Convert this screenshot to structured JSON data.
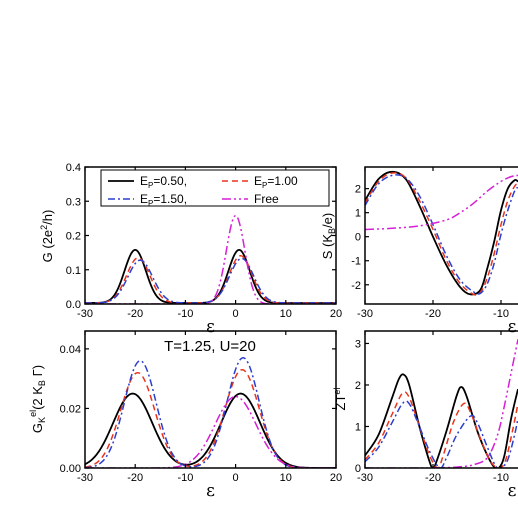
{
  "colors": {
    "Ep050": "#000000",
    "Ep100": "#e8341c",
    "Ep150": "#2b3ecf",
    "Free": "#d61fd6"
  },
  "chart_data": [
    {
      "type": "line",
      "panel": "G",
      "ylabel": "G (2e²/h)",
      "xlabel": "ε",
      "xlim": [
        -30,
        20
      ],
      "ylim": [
        0,
        0.4
      ],
      "xticks": [
        "-30",
        "-20",
        "-10",
        "0",
        "10",
        "20"
      ],
      "yticks": [
        "0.0",
        "0.1",
        "0.2",
        "0.3",
        "0.4"
      ],
      "legend": [
        "E_P=0.50,",
        "E_P=1.00",
        "E_P=1.50,",
        "Free"
      ],
      "series": [
        {
          "name": "E_P=0.50,",
          "peaks": [
            [
              -20,
              0.155,
              3.0
            ],
            [
              0.7,
              0.155,
              3.0
            ]
          ],
          "base": 0.003
        },
        {
          "name": "E_P=1.00",
          "peaks": [
            [
              -19.4,
              0.132,
              3.3
            ],
            [
              1.0,
              0.138,
              3.2
            ]
          ],
          "base": 0.003
        },
        {
          "name": "E_P=1.50,",
          "peaks": [
            [
              -19,
              0.125,
              3.5
            ],
            [
              1.2,
              0.13,
              3.4
            ]
          ],
          "base": 0.003
        },
        {
          "name": "Free",
          "peaks": [
            [
              0,
              0.258,
              2.6
            ]
          ],
          "base": 0.0
        }
      ]
    },
    {
      "type": "line",
      "panel": "S",
      "ylabel": "S (K_B/e)",
      "xlabel": "ε",
      "xlim": [
        -30,
        -7.5
      ],
      "ylim": [
        -2.8,
        2.9
      ],
      "xticks": [
        "-30",
        "-20",
        "-10"
      ],
      "yticks": [
        "-2",
        "-1",
        "0",
        "1",
        "2"
      ],
      "series": [
        {
          "name": "E_P=0.50,",
          "points": [
            [
              -30,
              1.5
            ],
            [
              -28,
              2.4
            ],
            [
              -26,
              2.7
            ],
            [
              -24,
              2.4
            ],
            [
              -22,
              1.3
            ],
            [
              -20,
              0.0
            ],
            [
              -18,
              -1.2
            ],
            [
              -16,
              -2.1
            ],
            [
              -14.5,
              -2.4
            ],
            [
              -13,
              -2.2
            ],
            [
              -12,
              -1.3
            ],
            [
              -11,
              -0.2
            ],
            [
              -10,
              1.1
            ],
            [
              -9,
              2.0
            ],
            [
              -8,
              2.35
            ],
            [
              -7.5,
              2.3
            ]
          ]
        },
        {
          "name": "E_P=1.00",
          "points": [
            [
              -30,
              1.4
            ],
            [
              -28,
              2.3
            ],
            [
              -26,
              2.65
            ],
            [
              -24,
              2.45
            ],
            [
              -22,
              1.5
            ],
            [
              -20,
              0.3
            ],
            [
              -18,
              -1.0
            ],
            [
              -16,
              -1.95
            ],
            [
              -14,
              -2.4
            ],
            [
              -13,
              -2.3
            ],
            [
              -12,
              -1.7
            ],
            [
              -11,
              -0.7
            ],
            [
              -10,
              0.5
            ],
            [
              -9,
              1.5
            ],
            [
              -8,
              2.1
            ],
            [
              -7.5,
              2.2
            ]
          ]
        },
        {
          "name": "E_P=1.50,",
          "points": [
            [
              -30,
              1.3
            ],
            [
              -28,
              2.2
            ],
            [
              -26,
              2.55
            ],
            [
              -24,
              2.45
            ],
            [
              -22,
              1.7
            ],
            [
              -20,
              0.5
            ],
            [
              -18,
              -0.8
            ],
            [
              -16,
              -1.8
            ],
            [
              -14,
              -2.3
            ],
            [
              -13,
              -2.35
            ],
            [
              -12,
              -1.95
            ],
            [
              -11,
              -1.1
            ],
            [
              -10,
              0.1
            ],
            [
              -9,
              1.1
            ],
            [
              -8,
              1.9
            ],
            [
              -7.5,
              2.05
            ]
          ]
        },
        {
          "name": "Free",
          "points": [
            [
              -30,
              0.3
            ],
            [
              -26,
              0.35
            ],
            [
              -22,
              0.45
            ],
            [
              -18,
              0.7
            ],
            [
              -16,
              1.0
            ],
            [
              -14,
              1.4
            ],
            [
              -12,
              1.9
            ],
            [
              -10,
              2.3
            ],
            [
              -8.5,
              2.5
            ],
            [
              -7.5,
              2.55
            ]
          ]
        }
      ]
    },
    {
      "type": "line",
      "panel": "Gel",
      "ylabel": "G_K^el (2 K_B Γ)",
      "xlabel": "ε",
      "annotation": "T=1.25, U=20",
      "xlim": [
        -30,
        20
      ],
      "ylim": [
        0,
        0.046
      ],
      "xticks": [
        "-30",
        "-20",
        "-10",
        "0",
        "10",
        "20"
      ],
      "yticks": [
        "0.00",
        "0.02",
        "0.04"
      ],
      "series": [
        {
          "name": "E_P=0.50,",
          "peaks": [
            [
              -20.5,
              0.025,
              5.5
            ],
            [
              1,
              0.025,
              5.5
            ]
          ],
          "base": 0.0
        },
        {
          "name": "E_P=1.00",
          "peaks": [
            [
              -19.5,
              0.032,
              4.8
            ],
            [
              1.3,
              0.033,
              4.8
            ]
          ],
          "base": 0.0
        },
        {
          "name": "E_P=1.50,",
          "peaks": [
            [
              -19,
              0.036,
              4.5
            ],
            [
              1.5,
              0.037,
              4.5
            ]
          ],
          "base": 0.0
        },
        {
          "name": "Free",
          "peaks": [
            [
              0,
              0.024,
              5.8
            ]
          ],
          "base": 0.0
        }
      ]
    },
    {
      "type": "line",
      "panel": "ZT",
      "ylabel": "ZT^el",
      "xlabel": "ε",
      "xlim": [
        -30,
        -7.5
      ],
      "ylim": [
        0,
        3.3
      ],
      "xticks": [
        "-30",
        "-20",
        "-10"
      ],
      "yticks": [
        "0",
        "1",
        "2",
        "3"
      ],
      "series": [
        {
          "name": "E_P=0.50,",
          "points": [
            [
              -30,
              0.3
            ],
            [
              -28,
              0.8
            ],
            [
              -26,
              1.7
            ],
            [
              -25,
              2.15
            ],
            [
              -24.3,
              2.25
            ],
            [
              -23.5,
              2.0
            ],
            [
              -22,
              1.0
            ],
            [
              -20.5,
              0.15
            ],
            [
              -20,
              0.0
            ],
            [
              -19.5,
              0.15
            ],
            [
              -18,
              0.9
            ],
            [
              -16.5,
              1.75
            ],
            [
              -15.8,
              1.95
            ],
            [
              -15,
              1.7
            ],
            [
              -13.5,
              0.9
            ],
            [
              -12,
              0.3
            ],
            [
              -11,
              0.02
            ],
            [
              -10.3,
              0.0
            ],
            [
              -9.5,
              0.3
            ],
            [
              -8.5,
              1.2
            ],
            [
              -7.5,
              1.9
            ]
          ]
        },
        {
          "name": "E_P=1.00",
          "points": [
            [
              -30,
              0.2
            ],
            [
              -28,
              0.6
            ],
            [
              -26,
              1.3
            ],
            [
              -24.5,
              1.8
            ],
            [
              -23.5,
              1.7
            ],
            [
              -22,
              1.0
            ],
            [
              -20.5,
              0.3
            ],
            [
              -19.3,
              0.0
            ],
            [
              -18.5,
              0.3
            ],
            [
              -17,
              1.1
            ],
            [
              -15.5,
              1.55
            ],
            [
              -14.5,
              1.35
            ],
            [
              -13,
              0.7
            ],
            [
              -11.5,
              0.15
            ],
            [
              -10.2,
              0.0
            ],
            [
              -9.3,
              0.2
            ],
            [
              -8.3,
              0.9
            ],
            [
              -7.5,
              1.55
            ]
          ]
        },
        {
          "name": "E_P=1.50,",
          "points": [
            [
              -30,
              0.15
            ],
            [
              -28,
              0.5
            ],
            [
              -26,
              1.1
            ],
            [
              -24.5,
              1.55
            ],
            [
              -23.5,
              1.55
            ],
            [
              -22,
              1.0
            ],
            [
              -20.5,
              0.4
            ],
            [
              -19,
              0.0
            ],
            [
              -18,
              0.25
            ],
            [
              -16.5,
              0.8
            ],
            [
              -14.5,
              1.25
            ],
            [
              -13.5,
              1.1
            ],
            [
              -12,
              0.5
            ],
            [
              -10.8,
              0.05
            ],
            [
              -10,
              0.0
            ],
            [
              -9,
              0.2
            ],
            [
              -8,
              0.8
            ],
            [
              -7.5,
              1.2
            ]
          ]
        },
        {
          "name": "Free",
          "points": [
            [
              -30,
              0.0
            ],
            [
              -22,
              0.0
            ],
            [
              -18,
              0.01
            ],
            [
              -16,
              0.03
            ],
            [
              -14,
              0.08
            ],
            [
              -12,
              0.25
            ],
            [
              -10.5,
              0.8
            ],
            [
              -9.5,
              1.5
            ],
            [
              -8.5,
              2.3
            ],
            [
              -7.5,
              3.1
            ]
          ]
        }
      ]
    }
  ]
}
